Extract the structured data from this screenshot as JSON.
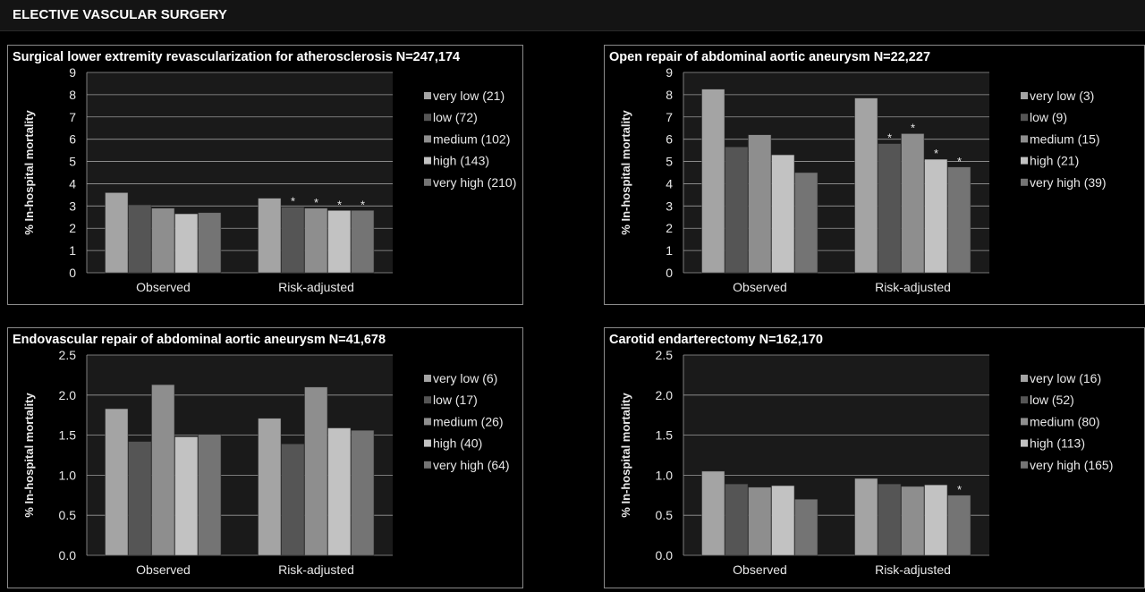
{
  "header": {
    "title": "ELECTIVE VASCULAR SURGERY"
  },
  "colors": {
    "background": "#000000",
    "plot_area": "#1a1a1a",
    "series": [
      "#a4a4a4",
      "#555555",
      "#8e8e8e",
      "#c2c2c2",
      "#747474"
    ]
  },
  "chart_data": [
    {
      "type": "bar",
      "title": "Surgical lower extremity revascularization for atherosclerosis N=247,174",
      "ylabel": "% In-hospital mortality",
      "xlabel": "",
      "categories": [
        "Observed",
        "Risk-adjusted"
      ],
      "ylim": [
        0,
        9
      ],
      "yticks": [
        "0",
        "1",
        "2",
        "3",
        "4",
        "5",
        "6",
        "7",
        "8",
        "9"
      ],
      "grid": true,
      "legend_position": "right",
      "series": [
        {
          "name": "very low (21)",
          "values": [
            3.6,
            3.35
          ],
          "stars": [
            false,
            false
          ]
        },
        {
          "name": "low (72)",
          "values": [
            3.05,
            2.95
          ],
          "stars": [
            false,
            true
          ]
        },
        {
          "name": "medium (102)",
          "values": [
            2.9,
            2.9
          ],
          "stars": [
            false,
            true
          ]
        },
        {
          "name": "high (143)",
          "values": [
            2.65,
            2.8
          ],
          "stars": [
            false,
            true
          ]
        },
        {
          "name": "very high (210)",
          "values": [
            2.7,
            2.8
          ],
          "stars": [
            false,
            true
          ]
        }
      ],
      "annotation_symbol": "*"
    },
    {
      "type": "bar",
      "title": "Open repair of abdominal aortic aneurysm N=22,227",
      "ylabel": "% In-hospital mortality",
      "xlabel": "",
      "categories": [
        "Observed",
        "Risk-adjusted"
      ],
      "ylim": [
        0,
        9
      ],
      "yticks": [
        "0",
        "1",
        "2",
        "3",
        "4",
        "5",
        "6",
        "7",
        "8",
        "9"
      ],
      "grid": true,
      "legend_position": "right",
      "series": [
        {
          "name": "very low (3)",
          "values": [
            8.25,
            7.85
          ],
          "stars": [
            false,
            false
          ]
        },
        {
          "name": "low (9)",
          "values": [
            5.65,
            5.8
          ],
          "stars": [
            false,
            true
          ]
        },
        {
          "name": "medium (15)",
          "values": [
            6.2,
            6.25
          ],
          "stars": [
            false,
            true
          ]
        },
        {
          "name": "high (21)",
          "values": [
            5.3,
            5.1
          ],
          "stars": [
            false,
            true
          ]
        },
        {
          "name": "very high (39)",
          "values": [
            4.5,
            4.75
          ],
          "stars": [
            false,
            true
          ]
        }
      ],
      "annotation_symbol": "*"
    },
    {
      "type": "bar",
      "title": "Endovascular repair of abdominal aortic aneurysm N=41,678",
      "ylabel": "% In-hospital mortality",
      "xlabel": "",
      "categories": [
        "Observed",
        "Risk-adjusted"
      ],
      "ylim": [
        0,
        2.5
      ],
      "yticks": [
        "0.0",
        "0.5",
        "1.0",
        "1.5",
        "2.0",
        "2.5"
      ],
      "grid": true,
      "legend_position": "right",
      "series": [
        {
          "name": "very low (6)",
          "values": [
            1.83,
            1.71
          ],
          "stars": [
            false,
            false
          ]
        },
        {
          "name": "low (17)",
          "values": [
            1.42,
            1.39
          ],
          "stars": [
            false,
            false
          ]
        },
        {
          "name": "medium (26)",
          "values": [
            2.13,
            2.1
          ],
          "stars": [
            false,
            false
          ]
        },
        {
          "name": "high (40)",
          "values": [
            1.48,
            1.59
          ],
          "stars": [
            false,
            false
          ]
        },
        {
          "name": "very high (64)",
          "values": [
            1.51,
            1.56
          ],
          "stars": [
            false,
            false
          ]
        }
      ],
      "annotation_symbol": "*"
    },
    {
      "type": "bar",
      "title": "Carotid endarterectomy N=162,170",
      "ylabel": "% In-hospital mortality",
      "xlabel": "",
      "categories": [
        "Observed",
        "Risk-adjusted"
      ],
      "ylim": [
        0,
        2.5
      ],
      "yticks": [
        "0.0",
        "0.5",
        "1.0",
        "1.5",
        "2.0",
        "2.5"
      ],
      "grid": true,
      "legend_position": "right",
      "series": [
        {
          "name": "very low (16)",
          "values": [
            1.05,
            0.96
          ],
          "stars": [
            false,
            false
          ]
        },
        {
          "name": "low (52)",
          "values": [
            0.89,
            0.89
          ],
          "stars": [
            false,
            false
          ]
        },
        {
          "name": "medium (80)",
          "values": [
            0.85,
            0.86
          ],
          "stars": [
            false,
            false
          ]
        },
        {
          "name": "high (113)",
          "values": [
            0.87,
            0.88
          ],
          "stars": [
            false,
            false
          ]
        },
        {
          "name": "very high (165)",
          "values": [
            0.7,
            0.75
          ],
          "stars": [
            false,
            true
          ]
        }
      ],
      "annotation_symbol": "*"
    }
  ]
}
